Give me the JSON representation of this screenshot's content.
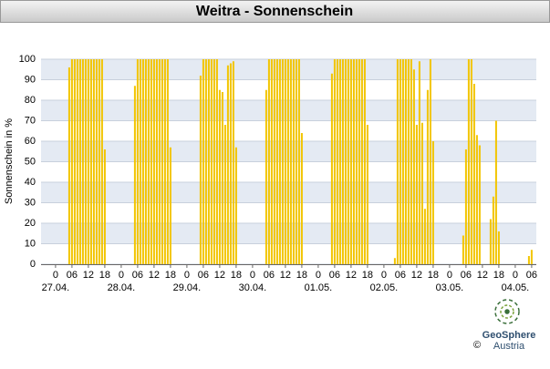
{
  "chart_data": {
    "type": "bar",
    "title": "Weitra - Sonnenschein",
    "ylabel": "Sonnenschein in %",
    "x": [
      5,
      6,
      7,
      8,
      9,
      10,
      11,
      12,
      13,
      14,
      15,
      16,
      17,
      18,
      29,
      30,
      31,
      32,
      33,
      34,
      35,
      36,
      37,
      38,
      39,
      40,
      41,
      42,
      53,
      54,
      55,
      56,
      57,
      58,
      59,
      60,
      61,
      62,
      63,
      64,
      65,
      66,
      77,
      78,
      79,
      80,
      81,
      82,
      83,
      84,
      85,
      86,
      87,
      88,
      89,
      90,
      101,
      102,
      103,
      104,
      105,
      106,
      107,
      108,
      109,
      110,
      111,
      112,
      113,
      114,
      124,
      125,
      126,
      127,
      128,
      129,
      130,
      131,
      132,
      133,
      134,
      135,
      136,
      137,
      138,
      149,
      150,
      151,
      152,
      153,
      154,
      155,
      156,
      157,
      158,
      159,
      160,
      161,
      162,
      173,
      174
    ],
    "values": [
      96,
      100,
      100,
      100,
      100,
      100,
      100,
      100,
      100,
      100,
      100,
      100,
      100,
      56,
      87,
      100,
      100,
      100,
      100,
      100,
      100,
      100,
      100,
      100,
      100,
      100,
      100,
      57,
      92,
      100,
      100,
      100,
      100,
      100,
      100,
      85,
      84,
      68,
      97,
      98,
      99,
      57,
      85,
      100,
      100,
      100,
      100,
      100,
      100,
      100,
      100,
      100,
      100,
      100,
      100,
      64,
      93,
      100,
      100,
      100,
      100,
      100,
      100,
      100,
      100,
      100,
      100,
      100,
      100,
      68,
      3,
      100,
      100,
      100,
      100,
      100,
      100,
      95,
      68,
      99,
      69,
      27,
      85,
      100,
      60,
      14,
      56,
      100,
      100,
      88,
      63,
      58,
      0,
      0,
      0,
      22,
      33,
      70,
      16,
      4,
      7
    ],
    "color": "#f2c500",
    "band_color": "#e4eaf3",
    "xlim": [
      -5.3,
      175.7
    ],
    "ylim": [
      0,
      100
    ],
    "yticks": [
      0,
      10,
      20,
      30,
      40,
      50,
      60,
      70,
      80,
      90,
      100
    ],
    "xticks": [
      {
        "value": 0,
        "label": "0"
      },
      {
        "value": 6,
        "label": "06"
      },
      {
        "value": 12,
        "label": "12"
      },
      {
        "value": 18,
        "label": "18"
      },
      {
        "value": 24,
        "label": "0"
      },
      {
        "value": 30,
        "label": "06"
      },
      {
        "value": 36,
        "label": "12"
      },
      {
        "value": 42,
        "label": "18"
      },
      {
        "value": 48,
        "label": "0"
      },
      {
        "value": 54,
        "label": "06"
      },
      {
        "value": 60,
        "label": "12"
      },
      {
        "value": 66,
        "label": "18"
      },
      {
        "value": 72,
        "label": "0"
      },
      {
        "value": 78,
        "label": "06"
      },
      {
        "value": 84,
        "label": "12"
      },
      {
        "value": 90,
        "label": "18"
      },
      {
        "value": 96,
        "label": "0"
      },
      {
        "value": 102,
        "label": "06"
      },
      {
        "value": 108,
        "label": "12"
      },
      {
        "value": 114,
        "label": "18"
      },
      {
        "value": 120,
        "label": "0"
      },
      {
        "value": 126,
        "label": "06"
      },
      {
        "value": 132,
        "label": "12"
      },
      {
        "value": 138,
        "label": "18"
      },
      {
        "value": 144,
        "label": "0"
      },
      {
        "value": 150,
        "label": "06"
      },
      {
        "value": 156,
        "label": "12"
      },
      {
        "value": 162,
        "label": "18"
      },
      {
        "value": 168,
        "label": "0"
      },
      {
        "value": 174,
        "label": "06"
      }
    ],
    "day_labels": [
      {
        "value": 0,
        "label": "27.04."
      },
      {
        "value": 24,
        "label": "28.04."
      },
      {
        "value": 48,
        "label": "29.04."
      },
      {
        "value": 72,
        "label": "30.04."
      },
      {
        "value": 96,
        "label": "01.05."
      },
      {
        "value": 120,
        "label": "02.05."
      },
      {
        "value": 144,
        "label": "03.05."
      },
      {
        "value": 168,
        "label": "04.05."
      }
    ],
    "grid": true
  },
  "logo": {
    "name": "GeoSphere",
    "sub": "Austria",
    "copyright": "©"
  }
}
